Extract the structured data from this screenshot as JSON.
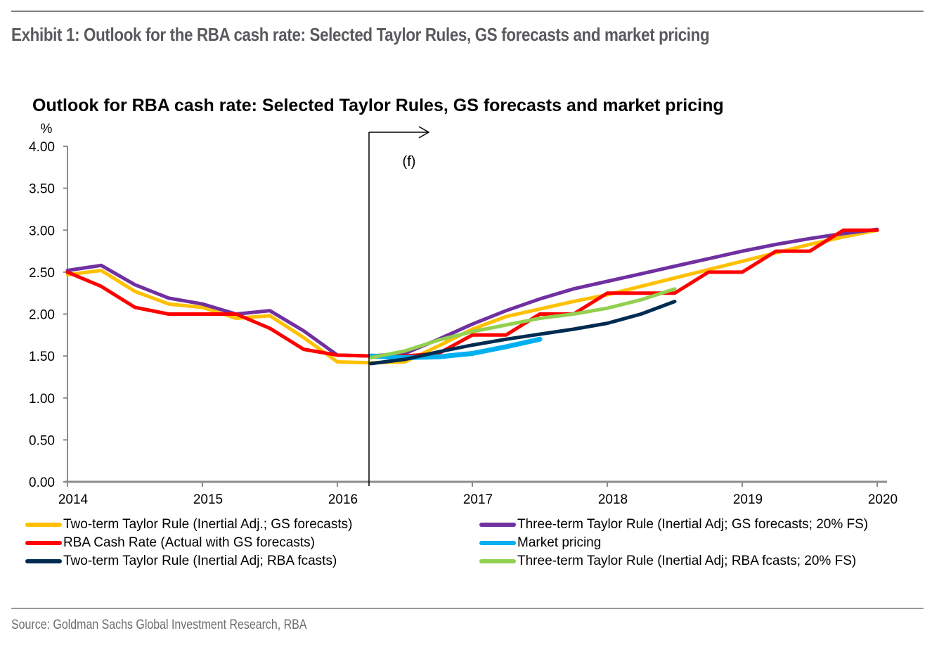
{
  "page": {
    "exhibit_title": "Exhibit 1: Outlook for the RBA cash rate: Selected Taylor Rules, GS forecasts and market pricing",
    "source": "Source: Goldman Sachs Global Investment Research, RBA"
  },
  "chart_data": {
    "type": "line",
    "title": "Outlook for RBA cash rate: Selected Taylor Rules, GS forecasts and market pricing",
    "ylabel": "%",
    "xlabel": "",
    "xlim": [
      2014,
      2020
    ],
    "ylim": [
      0,
      4
    ],
    "x_ticks": [
      2014,
      2015,
      2016,
      2017,
      2018,
      2019,
      2020
    ],
    "x_tick_labels": [
      "2014",
      "2015",
      "2016",
      "2017",
      "2018",
      "2019",
      "2020"
    ],
    "y_ticks": [
      0,
      0.5,
      1,
      1.5,
      2,
      2.5,
      3,
      3.5,
      4
    ],
    "y_tick_labels": [
      "0.00",
      "0.50",
      "1.00",
      "1.50",
      "2.00",
      "2.50",
      "3.00",
      "3.50",
      "4.00"
    ],
    "grid": false,
    "legend_position": "bottom",
    "annotations": [
      {
        "type": "vertical-line",
        "x": 2016.25,
        "label": "(f)",
        "meaning": "forecast start with right arrow"
      }
    ],
    "series": [
      {
        "name": "Two-term Taylor Rule (Inertial Adj.; GS forecasts)",
        "color": "#ffc000",
        "x": [
          2014,
          2014.25,
          2014.5,
          2014.75,
          2015,
          2015.25,
          2015.5,
          2015.75,
          2016,
          2016.25,
          2016.5,
          2016.75,
          2017,
          2017.25,
          2017.5,
          2017.75,
          2018,
          2018.25,
          2018.5,
          2018.75,
          2019,
          2019.25,
          2019.5,
          2019.75,
          2020
        ],
        "values": [
          2.47,
          2.52,
          2.27,
          2.12,
          2.08,
          1.95,
          1.98,
          1.72,
          1.43,
          1.42,
          1.43,
          1.62,
          1.82,
          1.97,
          2.06,
          2.15,
          2.23,
          2.33,
          2.43,
          2.53,
          2.63,
          2.73,
          2.83,
          2.92,
          3.0
        ]
      },
      {
        "name": "Three-term Taylor Rule (Inertial Adj; GS forecasts; 20% FS)",
        "color": "#7030a0",
        "x": [
          2014,
          2014.25,
          2014.5,
          2014.75,
          2015,
          2015.25,
          2015.5,
          2015.75,
          2016,
          2016.25,
          2016.5,
          2016.75,
          2017,
          2017.25,
          2017.5,
          2017.75,
          2018,
          2018.25,
          2018.5,
          2018.75,
          2019,
          2019.25,
          2019.5,
          2019.75,
          2020
        ],
        "values": [
          2.52,
          2.58,
          2.35,
          2.19,
          2.12,
          2.0,
          2.04,
          1.8,
          1.51,
          1.5,
          1.53,
          1.7,
          1.88,
          2.04,
          2.18,
          2.3,
          2.39,
          2.48,
          2.57,
          2.66,
          2.75,
          2.83,
          2.9,
          2.96,
          3.01
        ]
      },
      {
        "name": "RBA Cash Rate (Actual with GS forecasts)",
        "color": "#ff0000",
        "x": [
          2014,
          2014.25,
          2014.5,
          2014.75,
          2015,
          2015.25,
          2015.5,
          2015.75,
          2016,
          2016.25,
          2016.5,
          2016.75,
          2017,
          2017.25,
          2017.5,
          2017.75,
          2018,
          2018.25,
          2018.5,
          2018.75,
          2019,
          2019.25,
          2019.5,
          2019.75,
          2020
        ],
        "values": [
          2.5,
          2.33,
          2.08,
          2.0,
          2.0,
          2.0,
          1.83,
          1.58,
          1.51,
          1.5,
          1.5,
          1.53,
          1.75,
          1.75,
          2.0,
          2.0,
          2.25,
          2.25,
          2.25,
          2.5,
          2.5,
          2.75,
          2.75,
          3.0,
          3.0
        ]
      },
      {
        "name": "Market pricing",
        "color": "#00b0f0",
        "x": [
          2016.25,
          2016.5,
          2016.75,
          2017,
          2017.25,
          2017.5
        ],
        "values": [
          1.5,
          1.48,
          1.49,
          1.53,
          1.61,
          1.7
        ]
      },
      {
        "name": "Two-term Taylor Rule (Inertial Adj; RBA fcasts)",
        "color": "#002b50",
        "x": [
          2016.25,
          2016.5,
          2016.75,
          2017,
          2017.25,
          2017.5,
          2017.75,
          2018,
          2018.25,
          2018.5
        ],
        "values": [
          1.41,
          1.46,
          1.55,
          1.63,
          1.7,
          1.76,
          1.82,
          1.89,
          2.0,
          2.15
        ]
      },
      {
        "name": "Three-term Taylor Rule (Inertial Adj; RBA fcasts; 20% FS)",
        "color": "#92d050",
        "x": [
          2016.25,
          2016.5,
          2016.75,
          2017,
          2017.25,
          2017.5,
          2017.75,
          2018,
          2018.25,
          2018.5
        ],
        "values": [
          1.48,
          1.56,
          1.69,
          1.79,
          1.87,
          1.95,
          2.0,
          2.07,
          2.17,
          2.3
        ]
      }
    ]
  },
  "legend": {
    "items": [
      {
        "label": "Two-term Taylor Rule (Inertial Adj.; GS forecasts)",
        "color": "#ffc000"
      },
      {
        "label": "Three-term Taylor Rule (Inertial Adj; GS forecasts; 20% FS)",
        "color": "#7030a0"
      },
      {
        "label": "RBA Cash Rate (Actual with GS forecasts)",
        "color": "#ff0000"
      },
      {
        "label": "Market pricing",
        "color": "#00b0f0"
      },
      {
        "label": "Two-term Taylor Rule (Inertial Adj; RBA fcasts)",
        "color": "#002b50"
      },
      {
        "label": "Three-term Taylor Rule (Inertial Adj; RBA fcasts; 20% FS)",
        "color": "#92d050"
      }
    ]
  }
}
